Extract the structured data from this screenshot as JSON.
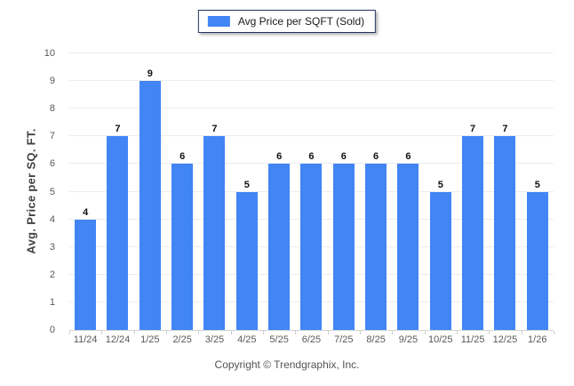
{
  "legend": {
    "label": "Avg Price per SQFT (Sold)",
    "swatch_color": "#4285f4"
  },
  "footer": {
    "copyright": "Copyright © Trendgraphix, Inc."
  },
  "chart_data": {
    "type": "bar",
    "title": "",
    "xlabel": "",
    "ylabel": "Avg. Price per SQ. FT.",
    "categories": [
      "11/24",
      "12/24",
      "1/25",
      "2/25",
      "3/25",
      "4/25",
      "5/25",
      "6/25",
      "7/25",
      "8/25",
      "9/25",
      "10/25",
      "11/25",
      "12/25",
      "1/26"
    ],
    "series": [
      {
        "name": "Avg Price per SQFT (Sold)",
        "values": [
          4,
          7,
          9,
          6,
          7,
          5,
          6,
          6,
          6,
          6,
          6,
          5,
          7,
          7,
          5
        ]
      }
    ],
    "ylim": [
      0,
      10
    ],
    "ytick_step": 1,
    "bar_color": "#4285f4",
    "grid": "horizontal",
    "legend_position": "top-center",
    "data_labels": true
  }
}
